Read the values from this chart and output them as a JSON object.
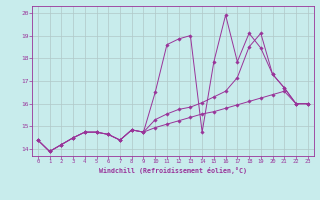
{
  "xlabel": "Windchill (Refroidissement éolien,°C)",
  "background_color": "#c8ecec",
  "grid_color": "#b0c8c8",
  "line_color": "#993399",
  "xlim": [
    -0.5,
    23.5
  ],
  "ylim": [
    13.7,
    20.3
  ],
  "xticks": [
    0,
    1,
    2,
    3,
    4,
    5,
    6,
    7,
    8,
    9,
    10,
    11,
    12,
    13,
    14,
    15,
    16,
    17,
    18,
    19,
    20,
    21,
    22,
    23
  ],
  "yticks": [
    14,
    15,
    16,
    17,
    18,
    19,
    20
  ],
  "line1_x": [
    0,
    1,
    2,
    3,
    4,
    5,
    6,
    7,
    8,
    9,
    10,
    11,
    12,
    13,
    14,
    15,
    16,
    17,
    18,
    19,
    20,
    21,
    22,
    23
  ],
  "line1_y": [
    14.4,
    13.9,
    14.2,
    14.5,
    14.75,
    14.75,
    14.65,
    14.4,
    14.85,
    14.75,
    16.5,
    18.6,
    18.85,
    19.0,
    14.75,
    17.85,
    19.9,
    17.85,
    19.1,
    18.45,
    17.3,
    16.7,
    16.0,
    16.0
  ],
  "line2_x": [
    0,
    1,
    2,
    3,
    4,
    5,
    6,
    7,
    8,
    9,
    10,
    11,
    12,
    13,
    14,
    15,
    16,
    17,
    18,
    19,
    20,
    21,
    22,
    23
  ],
  "line2_y": [
    14.4,
    13.9,
    14.2,
    14.5,
    14.75,
    14.75,
    14.65,
    14.4,
    14.85,
    14.75,
    15.3,
    15.55,
    15.75,
    15.85,
    16.05,
    16.3,
    16.55,
    17.15,
    18.5,
    19.1,
    17.3,
    16.7,
    16.0,
    16.0
  ],
  "line3_x": [
    0,
    1,
    2,
    3,
    4,
    5,
    6,
    7,
    8,
    9,
    10,
    11,
    12,
    13,
    14,
    15,
    16,
    17,
    18,
    19,
    20,
    21,
    22,
    23
  ],
  "line3_y": [
    14.4,
    13.9,
    14.2,
    14.5,
    14.75,
    14.75,
    14.65,
    14.4,
    14.85,
    14.75,
    14.95,
    15.1,
    15.25,
    15.4,
    15.55,
    15.65,
    15.8,
    15.95,
    16.1,
    16.25,
    16.4,
    16.55,
    16.0,
    16.0
  ]
}
